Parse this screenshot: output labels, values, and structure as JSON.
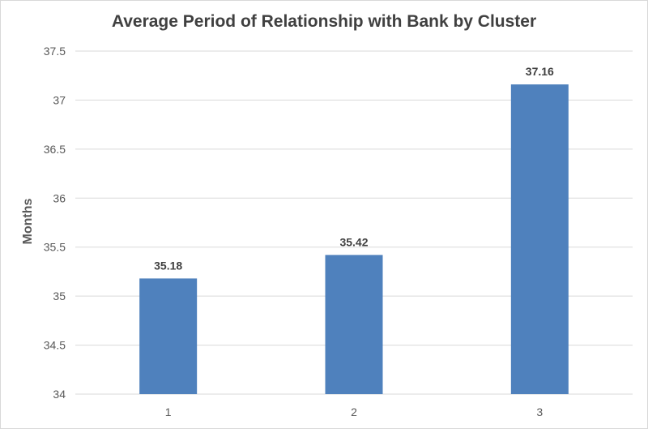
{
  "chart_data": {
    "type": "bar",
    "title": "Average Period of Relationship with Bank by Cluster",
    "xlabel": "",
    "ylabel": "Months",
    "categories": [
      "1",
      "2",
      "3"
    ],
    "values": [
      35.18,
      35.42,
      37.16
    ],
    "data_labels": [
      "35.18",
      "35.42",
      "37.16"
    ],
    "ylim": [
      34,
      37.5
    ],
    "yticks": [
      "34",
      "34.5",
      "35",
      "35.5",
      "36",
      "36.5",
      "37",
      "37.5"
    ],
    "grid": true,
    "legend": "none",
    "bar_color": "#4f81bd"
  }
}
